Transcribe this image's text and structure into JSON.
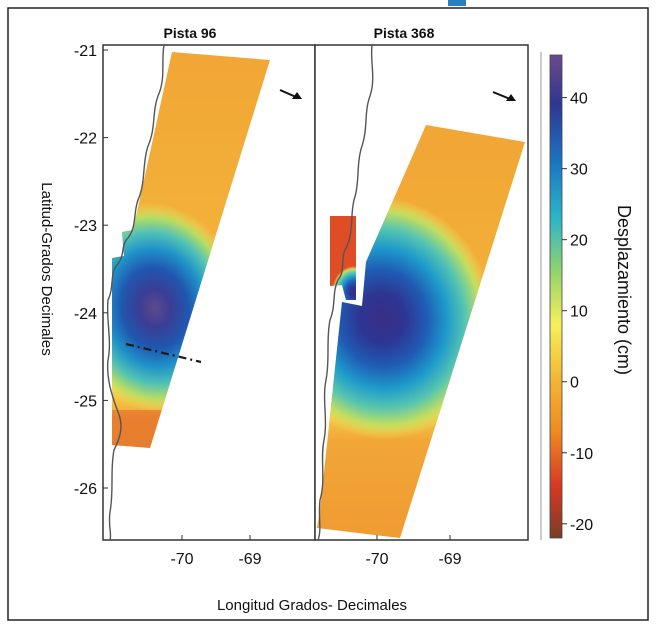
{
  "chart_data": {
    "type": "heatmap",
    "panels": [
      {
        "title": "Pista 96"
      },
      {
        "title": "Pista 368"
      }
    ],
    "xlabel": "Longitud Grados- Decimales",
    "ylabel": "Latitud-Grados Decimales",
    "x_ticks": [
      {
        "label": "-70",
        "value": -70
      },
      {
        "label": "-69",
        "value": -69
      }
    ],
    "y_ticks": [
      {
        "label": "-21",
        "value": -21
      },
      {
        "label": "-22",
        "value": -22
      },
      {
        "label": "-23",
        "value": -23
      },
      {
        "label": "-24",
        "value": -24
      },
      {
        "label": "-25",
        "value": -25
      },
      {
        "label": "-26",
        "value": -26
      }
    ],
    "xlim": [
      -70.8,
      -68.4
    ],
    "ylim": [
      -26.7,
      -20.9
    ],
    "colorbar": {
      "title": "Desplazamiento (cm)",
      "range": [
        -22,
        46
      ],
      "ticks": [
        {
          "label": "40",
          "value": 40
        },
        {
          "label": "30",
          "value": 30
        },
        {
          "label": "20",
          "value": 20
        },
        {
          "label": "10",
          "value": 10
        },
        {
          "label": "0",
          "value": 0
        },
        {
          "label": "-10",
          "value": -10
        },
        {
          "label": "-20",
          "value": -20
        }
      ],
      "colormap": [
        "#7a3c28",
        "#d73a24",
        "#f08a22",
        "#f2b736",
        "#f6f05a",
        "#96d36d",
        "#2eb6c6",
        "#1a74c2",
        "#2f3690",
        "#6b4a8c"
      ]
    },
    "max_displacement_cm": [
      44,
      44
    ],
    "legend": "none",
    "grid": false
  }
}
